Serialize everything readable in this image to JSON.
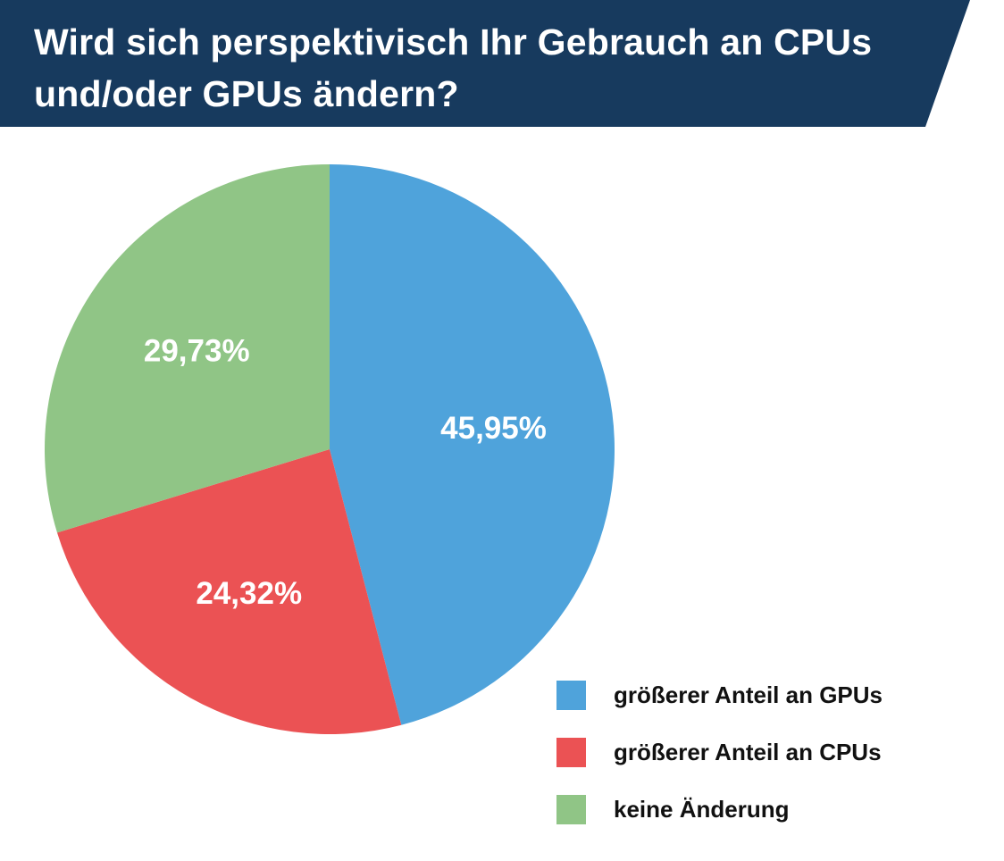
{
  "title": {
    "line1": "Wird sich perspektivisch Ihr Gebrauch an CPUs",
    "line2": "und/oder GPUs ändern?",
    "banner_color": "#173a5e",
    "text_color": "#ffffff"
  },
  "chart_data": {
    "type": "pie",
    "start": "12 o'clock",
    "direction": "clockwise",
    "slices": [
      {
        "label": "größerer Anteil an GPUs",
        "value": 45.95,
        "value_label": "45,95%",
        "color": "#4fa3db"
      },
      {
        "label": "größerer Anteil an CPUs",
        "value": 24.32,
        "value_label": "24,32%",
        "color": "#eb5254"
      },
      {
        "label": "keine Änderung",
        "value": 29.73,
        "value_label": "29,73%",
        "color": "#90c586"
      }
    ],
    "legend_position": "bottom-right"
  },
  "legend": {
    "items": [
      {
        "label": "größerer Anteil an GPUs",
        "color": "#4fa3db"
      },
      {
        "label": "größerer Anteil an CPUs",
        "color": "#eb5254"
      },
      {
        "label": "keine Änderung",
        "color": "#90c586"
      }
    ]
  }
}
